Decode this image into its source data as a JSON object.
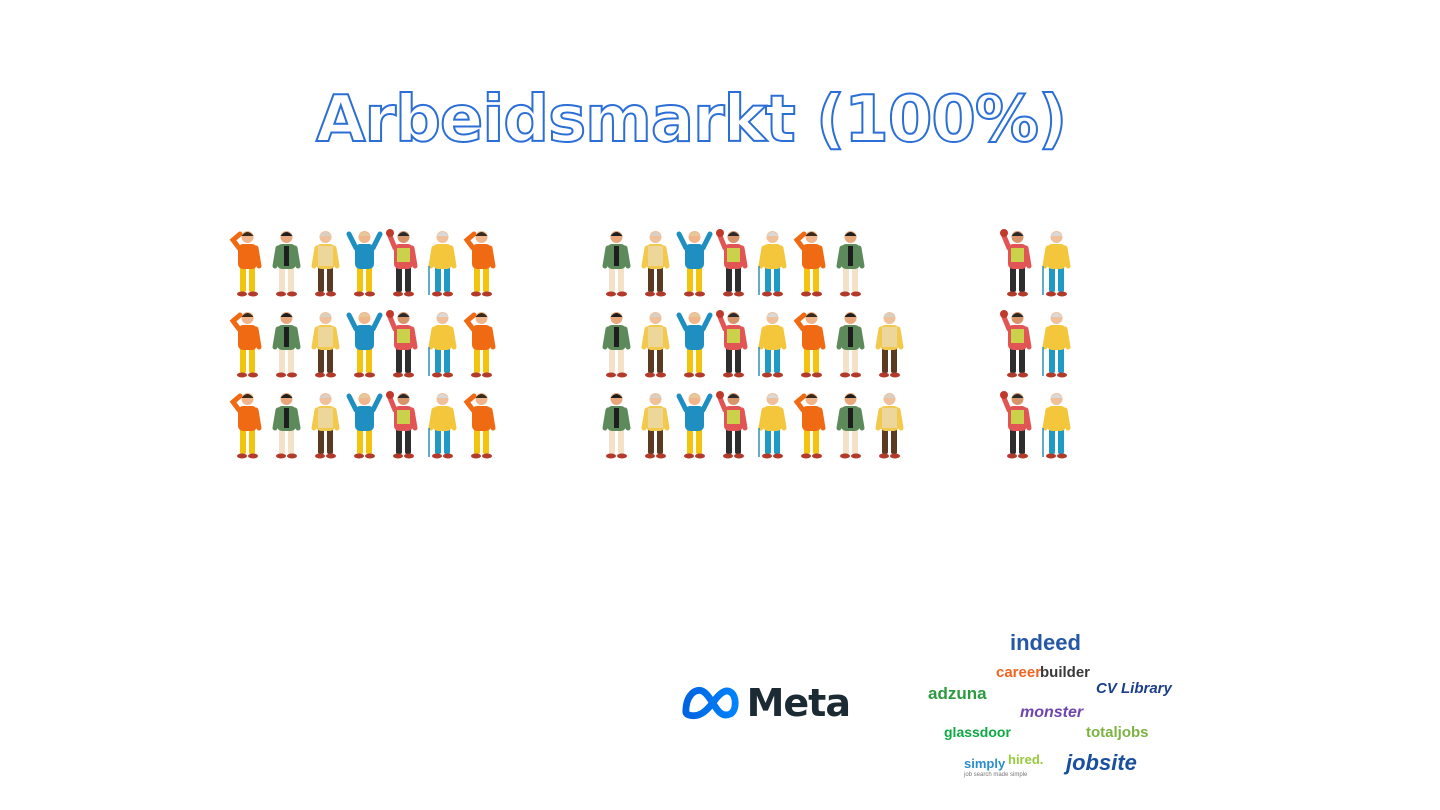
{
  "title": "Arbeidsmarkt (100%)",
  "figure_icon": "person-icon",
  "groups": [
    {
      "name": "left",
      "rows": [
        [
          "orange",
          "green-coat",
          "vest",
          "blue",
          "hi-vis",
          "cane",
          "orange"
        ],
        [
          "orange",
          "green-coat",
          "vest",
          "blue",
          "hi-vis",
          "cane",
          "orange"
        ],
        [
          "orange",
          "green-coat",
          "vest",
          "blue",
          "hi-vis",
          "cane",
          "orange"
        ]
      ]
    },
    {
      "name": "middle",
      "rows": [
        [
          "green-coat",
          "vest",
          "blue",
          "hi-vis",
          "cane",
          "orange",
          "green-coat"
        ],
        [
          "green-coat",
          "vest",
          "blue",
          "hi-vis",
          "cane",
          "orange",
          "green-coat",
          "vest"
        ],
        [
          "green-coat",
          "vest",
          "blue",
          "hi-vis",
          "cane",
          "orange",
          "green-coat",
          "vest"
        ]
      ]
    },
    {
      "name": "right",
      "rows": [
        [
          "hi-vis",
          "cane"
        ],
        [
          "hi-vis",
          "cane"
        ],
        [
          "hi-vis",
          "cane"
        ]
      ]
    }
  ],
  "logos": {
    "meta": {
      "text": "Meta",
      "icon": "meta-infinity-icon"
    },
    "job_boards": [
      {
        "key": "indeed",
        "text": "indeed",
        "color": "#2557a7"
      },
      {
        "key": "careerbuilder_a",
        "text": "career",
        "color": "#f26522"
      },
      {
        "key": "careerbuilder_b",
        "text": "builder",
        "color": "#3a3a3a"
      },
      {
        "key": "cvlibrary",
        "text": "CV Library",
        "color": "#1d3f8a"
      },
      {
        "key": "adzuna",
        "text": "adzuna",
        "color": "#2d9a3f"
      },
      {
        "key": "monster",
        "text": "monster",
        "color": "#6e46ae"
      },
      {
        "key": "glassdoor",
        "text": "glassdoor",
        "color": "#0caa41"
      },
      {
        "key": "totaljobs",
        "text": "totaljobs",
        "color": "#7cb342"
      },
      {
        "key": "simplyhired_a",
        "text": "simply",
        "color": "#2a8dd0"
      },
      {
        "key": "simplyhired_b",
        "text": "hired.",
        "color": "#97c93d"
      },
      {
        "key": "simplyhired_tag",
        "text": "job search made simple",
        "color": "#777777"
      },
      {
        "key": "jobsite",
        "text": "jobsite",
        "color": "#1a4fa0"
      }
    ]
  },
  "palette": {
    "orange": {
      "shirt": "#f06a14",
      "pants": "#f2c40e",
      "skin": "#f0b58a",
      "hair": "#3a2a1a"
    },
    "green-coat": {
      "shirt": "#5c8a5a",
      "pants": "#f3e2c7",
      "skin": "#e8a87c",
      "hair": "#1e1e1e"
    },
    "vest": {
      "shirt": "#f2c94c",
      "pants": "#5a3a22",
      "skin": "#f0c09a",
      "hair": "#d8d0c4"
    },
    "blue": {
      "shirt": "#1f8fc1",
      "pants": "#f2c40e",
      "skin": "#f0b58a",
      "hair": "#e6c99a"
    },
    "hi-vis": {
      "shirt": "#e25555",
      "pants": "#2e2e2e",
      "skin": "#d9956a",
      "hair": "#2a2a2a"
    },
    "cane": {
      "shirt": "#f3c63c",
      "pants": "#1e9ac4",
      "skin": "#f0c09a",
      "hair": "#d9d9d9"
    }
  }
}
